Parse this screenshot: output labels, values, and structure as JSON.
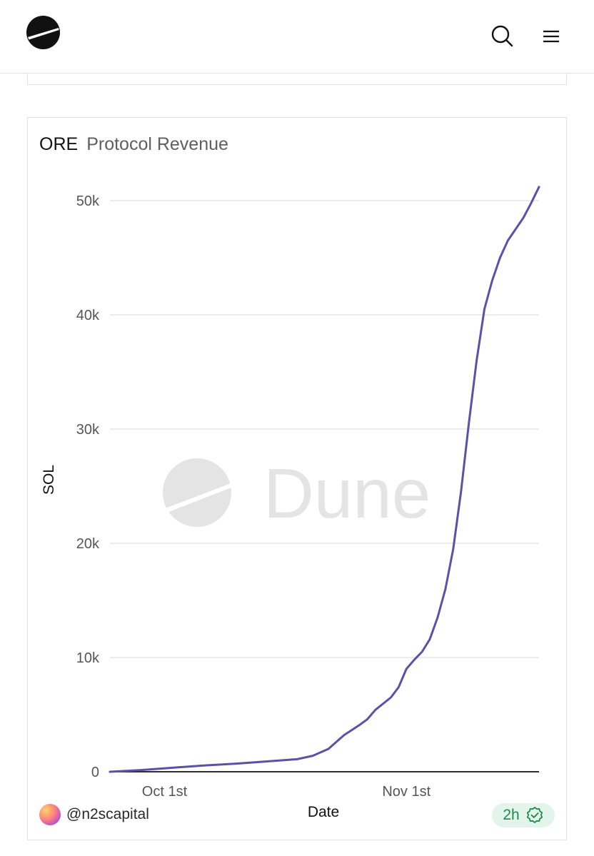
{
  "header": {
    "logo_icon": "dune-logo-icon",
    "search_icon": "search-icon",
    "menu_icon": "hamburger-menu-icon"
  },
  "card": {
    "project": "ORE",
    "metric": "Protocol Revenue",
    "watermark": "Dune",
    "author": "@n2scapital",
    "freshness": "2h",
    "freshness_icon": "verified-badge-icon",
    "colors": {
      "line": "#5a52a6",
      "grid": "#e6e6e6",
      "axis_text": "#555555",
      "watermark": "#e4e4e4",
      "badge_bg": "#e3f5ea",
      "badge_text": "#1f8a4f"
    }
  },
  "chart_data": {
    "type": "line",
    "title": "ORE Protocol Revenue",
    "xlabel": "Date",
    "ylabel": "SOL",
    "ylim": [
      0,
      52000
    ],
    "yticks": [
      0,
      10000,
      20000,
      30000,
      40000,
      50000
    ],
    "ytick_labels": [
      "0",
      "10k",
      "20k",
      "30k",
      "40k",
      "50k"
    ],
    "xtick_labels": [
      "Oct 1st",
      "Nov 1st"
    ],
    "x": [
      "2024-09-24",
      "2024-09-28",
      "2024-10-02",
      "2024-10-06",
      "2024-10-10",
      "2024-10-14",
      "2024-10-18",
      "2024-10-20",
      "2024-10-22",
      "2024-10-24",
      "2024-10-26",
      "2024-10-27",
      "2024-10-28",
      "2024-10-30",
      "2024-10-31",
      "2024-11-01",
      "2024-11-02",
      "2024-11-03",
      "2024-11-04",
      "2024-11-05",
      "2024-11-06",
      "2024-11-07",
      "2024-11-08",
      "2024-11-09",
      "2024-11-10",
      "2024-11-11",
      "2024-11-12",
      "2024-11-13",
      "2024-11-14",
      "2024-11-15",
      "2024-11-16",
      "2024-11-17",
      "2024-11-18"
    ],
    "series": [
      {
        "values": [
          0,
          150,
          350,
          550,
          700,
          900,
          1100,
          1400,
          2000,
          3200,
          4100,
          4600,
          5400,
          6500,
          7400,
          9000,
          9800,
          10500,
          11600,
          13500,
          16000,
          19500,
          24500,
          30500,
          36000,
          40500,
          43000,
          45000,
          46500,
          47500,
          48500,
          49800,
          51200
        ]
      }
    ]
  }
}
